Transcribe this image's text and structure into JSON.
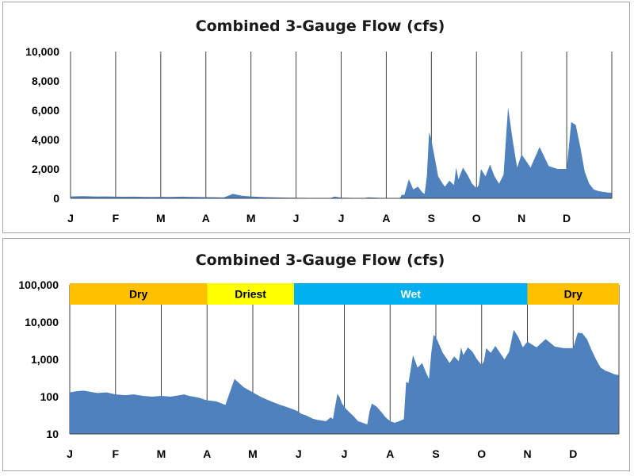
{
  "chart_data": [
    {
      "type": "area",
      "title": "Combined 3-Gauge Flow (cfs)",
      "xlabel": "",
      "ylabel": "",
      "yscale": "linear",
      "ylim": [
        0,
        10000
      ],
      "y_ticks": [
        0,
        2000,
        4000,
        6000,
        8000,
        10000
      ],
      "y_tick_labels": [
        "0",
        "2,000",
        "4,000",
        "6,000",
        "8,000",
        "10,000"
      ],
      "x_tick_labels": [
        "J",
        "F",
        "M",
        "A",
        "M",
        "J",
        "J",
        "A",
        "S",
        "O",
        "N",
        "D"
      ],
      "grid": "vertical",
      "color": "#4f81bd",
      "x_months": [
        0.0,
        0.15,
        0.3,
        0.45,
        0.6,
        0.8,
        1.0,
        1.2,
        1.4,
        1.6,
        1.8,
        2.0,
        2.2,
        2.4,
        2.5,
        2.6,
        2.8,
        3.0,
        3.2,
        3.4,
        3.6,
        3.8,
        4.0,
        4.2,
        4.4,
        4.6,
        4.8,
        5.0,
        5.05,
        5.15,
        5.25,
        5.3,
        5.4,
        5.6,
        5.7,
        5.75,
        5.8,
        5.85,
        5.9,
        5.95,
        6.05,
        6.2,
        6.3,
        6.4,
        6.5,
        6.55,
        6.6,
        6.7,
        6.8,
        6.9,
        7.0,
        7.1,
        7.2,
        7.3,
        7.35,
        7.4,
        7.5,
        7.6,
        7.7,
        7.8,
        7.85,
        7.9,
        7.95,
        8.0,
        8.15,
        8.25,
        8.3,
        8.4,
        8.5,
        8.55,
        8.6,
        8.7,
        8.8,
        8.9,
        9.0,
        9.05,
        9.1,
        9.2,
        9.3,
        9.4,
        9.5,
        9.6,
        9.7,
        9.8,
        9.9,
        10.0,
        10.2,
        10.4,
        10.6,
        10.8,
        11.0,
        11.1,
        11.2,
        11.3,
        11.4,
        11.5,
        11.6,
        11.7,
        11.8,
        11.9,
        11.99
      ],
      "values": [
        130,
        140,
        145,
        135,
        125,
        130,
        115,
        110,
        115,
        105,
        100,
        105,
        100,
        110,
        115,
        105,
        95,
        80,
        75,
        60,
        300,
        180,
        130,
        95,
        75,
        60,
        50,
        40,
        35,
        32,
        28,
        26,
        24,
        22,
        28,
        25,
        55,
        120,
        95,
        65,
        45,
        30,
        22,
        20,
        18,
        40,
        65,
        55,
        40,
        28,
        22,
        20,
        22,
        25,
        250,
        230,
        1300,
        600,
        800,
        400,
        300,
        1500,
        4500,
        4000,
        1500,
        1000,
        800,
        1200,
        900,
        2100,
        1300,
        2100,
        1600,
        1000,
        700,
        900,
        2000,
        1500,
        2300,
        1500,
        1000,
        1600,
        6200,
        4000,
        2100,
        3000,
        2100,
        3500,
        2200,
        2000,
        2000,
        5200,
        5000,
        3500,
        1800,
        1000,
        600,
        500,
        450,
        400,
        380
      ]
    },
    {
      "type": "area",
      "title": "Combined 3-Gauge Flow (cfs)",
      "xlabel": "",
      "ylabel": "",
      "yscale": "log",
      "ylim": [
        10,
        100000
      ],
      "y_ticks": [
        10,
        100,
        1000,
        10000,
        100000
      ],
      "y_tick_labels": [
        "10",
        "100",
        "1,000",
        "10,000",
        "100,000"
      ],
      "x_tick_labels": [
        "J",
        "F",
        "M",
        "A",
        "M",
        "J",
        "J",
        "A",
        "S",
        "O",
        "N",
        "D"
      ],
      "grid": "vertical",
      "color": "#4f81bd",
      "x_months": [
        0.0,
        0.15,
        0.3,
        0.45,
        0.6,
        0.8,
        1.0,
        1.2,
        1.4,
        1.6,
        1.8,
        2.0,
        2.2,
        2.4,
        2.5,
        2.6,
        2.8,
        3.0,
        3.2,
        3.4,
        3.6,
        3.8,
        4.0,
        4.2,
        4.4,
        4.6,
        4.8,
        5.0,
        5.05,
        5.15,
        5.25,
        5.3,
        5.4,
        5.6,
        5.7,
        5.75,
        5.8,
        5.85,
        5.9,
        5.95,
        6.05,
        6.2,
        6.3,
        6.4,
        6.5,
        6.55,
        6.6,
        6.7,
        6.8,
        6.9,
        7.0,
        7.1,
        7.2,
        7.3,
        7.35,
        7.4,
        7.5,
        7.6,
        7.7,
        7.8,
        7.85,
        7.9,
        7.95,
        8.0,
        8.15,
        8.25,
        8.3,
        8.4,
        8.5,
        8.55,
        8.6,
        8.7,
        8.8,
        8.9,
        9.0,
        9.05,
        9.1,
        9.2,
        9.3,
        9.4,
        9.5,
        9.6,
        9.7,
        9.8,
        9.9,
        10.0,
        10.2,
        10.4,
        10.6,
        10.8,
        11.0,
        11.1,
        11.2,
        11.3,
        11.4,
        11.5,
        11.6,
        11.7,
        11.8,
        11.9,
        11.99
      ],
      "values": [
        130,
        140,
        145,
        135,
        125,
        130,
        115,
        110,
        115,
        105,
        100,
        105,
        100,
        110,
        115,
        105,
        95,
        80,
        75,
        60,
        300,
        180,
        130,
        95,
        75,
        60,
        50,
        40,
        35,
        32,
        28,
        26,
        24,
        22,
        28,
        25,
        55,
        120,
        95,
        65,
        45,
        30,
        22,
        20,
        18,
        40,
        65,
        55,
        40,
        28,
        22,
        20,
        22,
        25,
        250,
        230,
        1300,
        600,
        800,
        400,
        300,
        1500,
        4500,
        4000,
        1500,
        1000,
        800,
        1200,
        900,
        2100,
        1300,
        2100,
        1600,
        1000,
        700,
        900,
        2000,
        1500,
        2300,
        1500,
        1000,
        1600,
        6200,
        4000,
        2100,
        3000,
        2100,
        3500,
        2200,
        2000,
        2000,
        5200,
        5000,
        3500,
        1800,
        1000,
        600,
        500,
        450,
        400,
        380
      ],
      "bands": [
        {
          "label": "Dry",
          "start_month": 0.0,
          "end_month": 3.0,
          "color": "#ffc000",
          "text_color": "#000000"
        },
        {
          "label": "Driest",
          "start_month": 3.0,
          "end_month": 4.9,
          "color": "#ffff00",
          "text_color": "#000000"
        },
        {
          "label": "Wet",
          "start_month": 4.9,
          "end_month": 10.0,
          "color": "#00b0f0",
          "text_color": "#ffffff"
        },
        {
          "label": "Dry",
          "start_month": 10.0,
          "end_month": 12.0,
          "color": "#ffc000",
          "text_color": "#000000"
        }
      ]
    }
  ]
}
